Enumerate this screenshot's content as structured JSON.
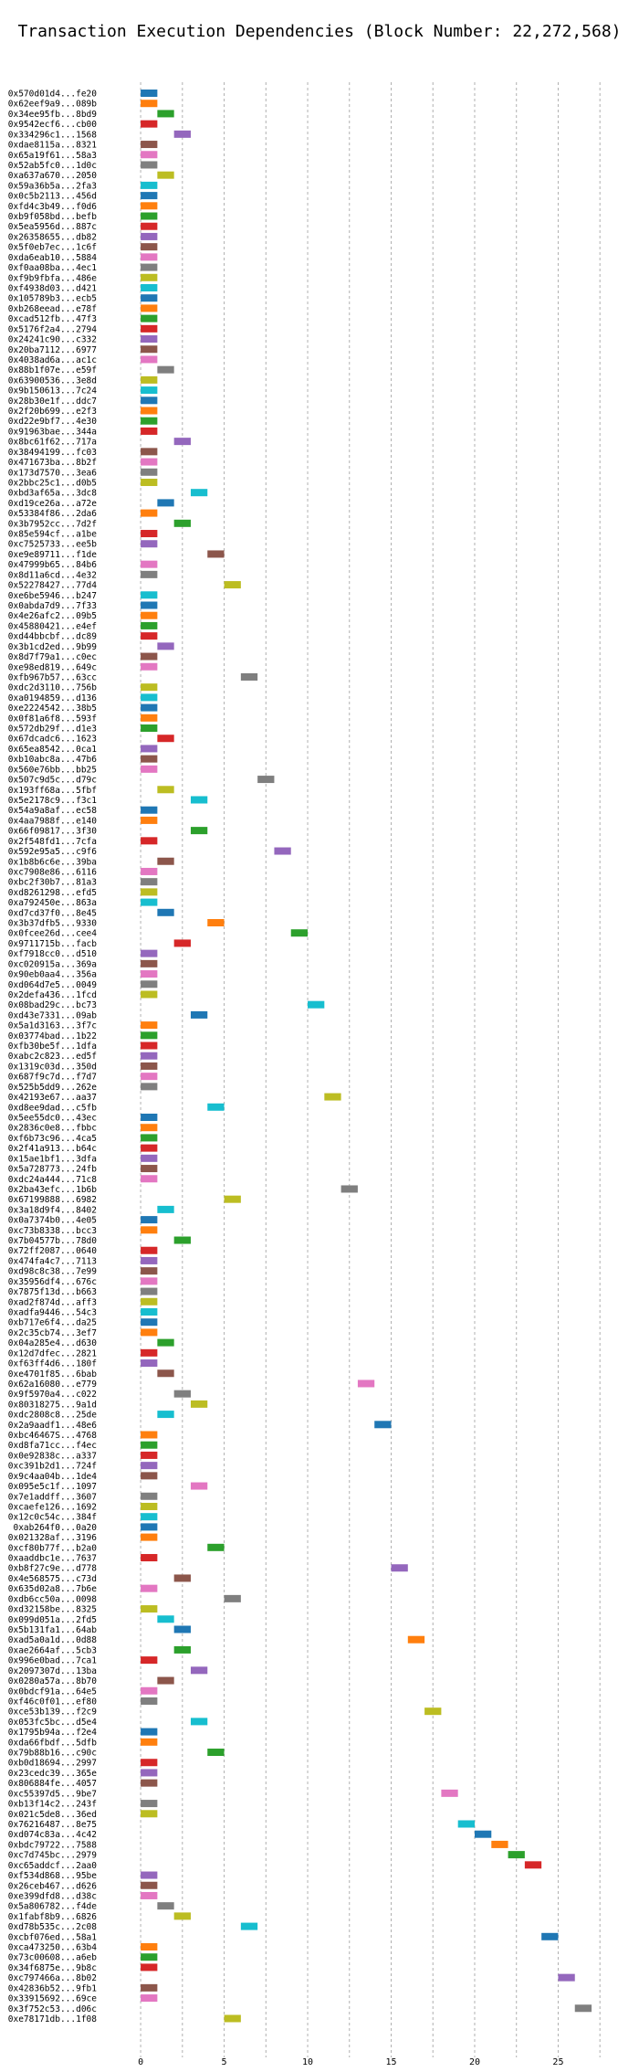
{
  "chart_data": {
    "type": "bar",
    "orientation": "horizontal",
    "title": "Transaction Execution Dependencies (Block Number: 22,272,568)",
    "xlabel": "",
    "ylabel": "",
    "xlim": [
      -2.3,
      28.2
    ],
    "xticks": [
      0,
      5,
      10,
      15,
      20,
      25
    ],
    "bar_width": 1,
    "grid": true,
    "transactions": [
      {
        "label": "0x570d01d4...fe20",
        "start": 0,
        "color": "#1f77b4"
      },
      {
        "label": "0x62eef9a9...089b",
        "start": 0,
        "color": "#ff7f0e"
      },
      {
        "label": "0x34ee95fb...8bd9",
        "start": 1,
        "color": "#2ca02c"
      },
      {
        "label": "0x9542ecf6...cb00",
        "start": 0,
        "color": "#d62728"
      },
      {
        "label": "0x334296c1...1568",
        "start": 2,
        "color": "#9467bd"
      },
      {
        "label": "0xdae8115a...8321",
        "start": 0,
        "color": "#8c564b"
      },
      {
        "label": "0x65a19f61...58a3",
        "start": 0,
        "color": "#e377c2"
      },
      {
        "label": "0x52ab5fc0...1d0c",
        "start": 0,
        "color": "#7f7f7f"
      },
      {
        "label": "0xa637a670...2050",
        "start": 1,
        "color": "#bcbd22"
      },
      {
        "label": "0x59a36b5a...2fa3",
        "start": 0,
        "color": "#17becf"
      },
      {
        "label": "0x0c5b2113...456d",
        "start": 0,
        "color": "#1f77b4"
      },
      {
        "label": "0xfd4c3b49...f0d6",
        "start": 0,
        "color": "#ff7f0e"
      },
      {
        "label": "0xb9f058bd...befb",
        "start": 0,
        "color": "#2ca02c"
      },
      {
        "label": "0x5ea5956d...887c",
        "start": 0,
        "color": "#d62728"
      },
      {
        "label": "0x26358655...db82",
        "start": 0,
        "color": "#9467bd"
      },
      {
        "label": "0x5f0eb7ec...1c6f",
        "start": 0,
        "color": "#8c564b"
      },
      {
        "label": "0xda6eab10...5884",
        "start": 0,
        "color": "#e377c2"
      },
      {
        "label": "0xf0aa08ba...4ec1",
        "start": 0,
        "color": "#7f7f7f"
      },
      {
        "label": "0xf9b9fbfa...486e",
        "start": 0,
        "color": "#bcbd22"
      },
      {
        "label": "0xf4938d03...d421",
        "start": 0,
        "color": "#17becf"
      },
      {
        "label": "0x105789b3...ecb5",
        "start": 0,
        "color": "#1f77b4"
      },
      {
        "label": "0xb268eead...e78f",
        "start": 0,
        "color": "#ff7f0e"
      },
      {
        "label": "0xcad512fb...47f3",
        "start": 0,
        "color": "#2ca02c"
      },
      {
        "label": "0x5176f2a4...2794",
        "start": 0,
        "color": "#d62728"
      },
      {
        "label": "0x24241c90...c332",
        "start": 0,
        "color": "#9467bd"
      },
      {
        "label": "0x20ba7112...6977",
        "start": 0,
        "color": "#8c564b"
      },
      {
        "label": "0x4038ad6a...ac1c",
        "start": 0,
        "color": "#e377c2"
      },
      {
        "label": "0x88b1f07e...e59f",
        "start": 1,
        "color": "#7f7f7f"
      },
      {
        "label": "0x63900536...3e8d",
        "start": 0,
        "color": "#bcbd22"
      },
      {
        "label": "0x9b150613...7c24",
        "start": 0,
        "color": "#17becf"
      },
      {
        "label": "0x28b30e1f...ddc7",
        "start": 0,
        "color": "#1f77b4"
      },
      {
        "label": "0x2f20b699...e2f3",
        "start": 0,
        "color": "#ff7f0e"
      },
      {
        "label": "0xd22e9bf7...4e30",
        "start": 0,
        "color": "#2ca02c"
      },
      {
        "label": "0x91963bae...344a",
        "start": 0,
        "color": "#d62728"
      },
      {
        "label": "0x8bc61f62...717a",
        "start": 2,
        "color": "#9467bd"
      },
      {
        "label": "0x38494199...fc03",
        "start": 0,
        "color": "#8c564b"
      },
      {
        "label": "0x471673ba...8b2f",
        "start": 0,
        "color": "#e377c2"
      },
      {
        "label": "0x173d7570...3ea6",
        "start": 0,
        "color": "#7f7f7f"
      },
      {
        "label": "0x2bbc25c1...d0b5",
        "start": 0,
        "color": "#bcbd22"
      },
      {
        "label": "0xbd3af65a...3dc8",
        "start": 3,
        "color": "#17becf"
      },
      {
        "label": "0xd19ce26a...a72e",
        "start": 1,
        "color": "#1f77b4"
      },
      {
        "label": "0x53384f86...2da6",
        "start": 0,
        "color": "#ff7f0e"
      },
      {
        "label": "0x3b7952cc...7d2f",
        "start": 2,
        "color": "#2ca02c"
      },
      {
        "label": "0x85e594cf...a1be",
        "start": 0,
        "color": "#d62728"
      },
      {
        "label": "0xc7525733...ee5b",
        "start": 0,
        "color": "#9467bd"
      },
      {
        "label": "0xe9e89711...f1de",
        "start": 4,
        "color": "#8c564b"
      },
      {
        "label": "0x47999b65...84b6",
        "start": 0,
        "color": "#e377c2"
      },
      {
        "label": "0x8d11a6cd...4e32",
        "start": 0,
        "color": "#7f7f7f"
      },
      {
        "label": "0x52278427...77d4",
        "start": 5,
        "color": "#bcbd22"
      },
      {
        "label": "0xe6be5946...b247",
        "start": 0,
        "color": "#17becf"
      },
      {
        "label": "0x0abda7d9...7f33",
        "start": 0,
        "color": "#1f77b4"
      },
      {
        "label": "0x4e26afc2...09b5",
        "start": 0,
        "color": "#ff7f0e"
      },
      {
        "label": "0x45880421...e4ef",
        "start": 0,
        "color": "#2ca02c"
      },
      {
        "label": "0xd44bbcbf...dc89",
        "start": 0,
        "color": "#d62728"
      },
      {
        "label": "0x3b1cd2ed...9b99",
        "start": 1,
        "color": "#9467bd"
      },
      {
        "label": "0x8d7f79a1...c0ec",
        "start": 0,
        "color": "#8c564b"
      },
      {
        "label": "0xe98ed819...649c",
        "start": 0,
        "color": "#e377c2"
      },
      {
        "label": "0xfb967b57...63cc",
        "start": 6,
        "color": "#7f7f7f"
      },
      {
        "label": "0xdc2d3110...756b",
        "start": 0,
        "color": "#bcbd22"
      },
      {
        "label": "0xa0194859...d136",
        "start": 0,
        "color": "#17becf"
      },
      {
        "label": "0xe2224542...38b5",
        "start": 0,
        "color": "#1f77b4"
      },
      {
        "label": "0x0f81a6f8...593f",
        "start": 0,
        "color": "#ff7f0e"
      },
      {
        "label": "0x572db29f...d1e3",
        "start": 0,
        "color": "#2ca02c"
      },
      {
        "label": "0x67dcadc6...1623",
        "start": 1,
        "color": "#d62728"
      },
      {
        "label": "0x65ea8542...0ca1",
        "start": 0,
        "color": "#9467bd"
      },
      {
        "label": "0xb10abc8a...47b6",
        "start": 0,
        "color": "#8c564b"
      },
      {
        "label": "0x560e76bb...bb25",
        "start": 0,
        "color": "#e377c2"
      },
      {
        "label": "0x507c9d5c...d79c",
        "start": 7,
        "color": "#7f7f7f"
      },
      {
        "label": "0x193ff68a...5fbf",
        "start": 1,
        "color": "#bcbd22"
      },
      {
        "label": "0x5e2178c9...f3c1",
        "start": 3,
        "color": "#17becf"
      },
      {
        "label": "0x54a9a8af...ec58",
        "start": 0,
        "color": "#1f77b4"
      },
      {
        "label": "0x4aa7988f...e140",
        "start": 0,
        "color": "#ff7f0e"
      },
      {
        "label": "0x66f09817...3f30",
        "start": 3,
        "color": "#2ca02c"
      },
      {
        "label": "0x2f548fd1...7cfa",
        "start": 0,
        "color": "#d62728"
      },
      {
        "label": "0x592e95a5...c9f6",
        "start": 8,
        "color": "#9467bd"
      },
      {
        "label": "0x1b8b6c6e...39ba",
        "start": 1,
        "color": "#8c564b"
      },
      {
        "label": "0xc7908e86...6116",
        "start": 0,
        "color": "#e377c2"
      },
      {
        "label": "0xbc2f30b7...81a3",
        "start": 0,
        "color": "#7f7f7f"
      },
      {
        "label": "0xd8261298...efd5",
        "start": 0,
        "color": "#bcbd22"
      },
      {
        "label": "0xa792450e...863a",
        "start": 0,
        "color": "#17becf"
      },
      {
        "label": "0xd7cd37f0...8e45",
        "start": 1,
        "color": "#1f77b4"
      },
      {
        "label": "0x3b37dfb5...9330",
        "start": 4,
        "color": "#ff7f0e"
      },
      {
        "label": "0x0fcee26d...cee4",
        "start": 9,
        "color": "#2ca02c"
      },
      {
        "label": "0x9711715b...facb",
        "start": 2,
        "color": "#d62728"
      },
      {
        "label": "0xf7918cc0...d510",
        "start": 0,
        "color": "#9467bd"
      },
      {
        "label": "0xc020915a...369a",
        "start": 0,
        "color": "#8c564b"
      },
      {
        "label": "0x90eb0aa4...356a",
        "start": 0,
        "color": "#e377c2"
      },
      {
        "label": "0xd064d7e5...0049",
        "start": 0,
        "color": "#7f7f7f"
      },
      {
        "label": "0x2defa436...1fcd",
        "start": 0,
        "color": "#bcbd22"
      },
      {
        "label": "0x08bad29c...bc73",
        "start": 10,
        "color": "#17becf"
      },
      {
        "label": "0xd43e7331...09ab",
        "start": 3,
        "color": "#1f77b4"
      },
      {
        "label": "0x5a1d3163...3f7c",
        "start": 0,
        "color": "#ff7f0e"
      },
      {
        "label": "0x03774bad...1b22",
        "start": 0,
        "color": "#2ca02c"
      },
      {
        "label": "0xfb30be5f...1dfa",
        "start": 0,
        "color": "#d62728"
      },
      {
        "label": "0xabc2c823...ed5f",
        "start": 0,
        "color": "#9467bd"
      },
      {
        "label": "0x1319c03d...350d",
        "start": 0,
        "color": "#8c564b"
      },
      {
        "label": "0x687f9c7d...f7d7",
        "start": 0,
        "color": "#e377c2"
      },
      {
        "label": "0x525b5dd9...262e",
        "start": 0,
        "color": "#7f7f7f"
      },
      {
        "label": "0x42193e67...aa37",
        "start": 11,
        "color": "#bcbd22"
      },
      {
        "label": "0xd8ee9dad...c5fb",
        "start": 4,
        "color": "#17becf"
      },
      {
        "label": "0x5ee55dc0...43ec",
        "start": 0,
        "color": "#1f77b4"
      },
      {
        "label": "0x2836c0e8...fbbc",
        "start": 0,
        "color": "#ff7f0e"
      },
      {
        "label": "0xf6b73c96...4ca5",
        "start": 0,
        "color": "#2ca02c"
      },
      {
        "label": "0x2f41a913...b64c",
        "start": 0,
        "color": "#d62728"
      },
      {
        "label": "0x15ae1bf1...3dfa",
        "start": 0,
        "color": "#9467bd"
      },
      {
        "label": "0x5a728773...24fb",
        "start": 0,
        "color": "#8c564b"
      },
      {
        "label": "0xdc24a444...71c8",
        "start": 0,
        "color": "#e377c2"
      },
      {
        "label": "0x2ba43efc...1b6b",
        "start": 12,
        "color": "#7f7f7f"
      },
      {
        "label": "0x67199888...6982",
        "start": 5,
        "color": "#bcbd22"
      },
      {
        "label": "0x3a18d9f4...8402",
        "start": 1,
        "color": "#17becf"
      },
      {
        "label": "0x0a7374b0...4e05",
        "start": 0,
        "color": "#1f77b4"
      },
      {
        "label": "0xc73b8338...bcc3",
        "start": 0,
        "color": "#ff7f0e"
      },
      {
        "label": "0x7b04577b...78d0",
        "start": 2,
        "color": "#2ca02c"
      },
      {
        "label": "0x72ff2087...0640",
        "start": 0,
        "color": "#d62728"
      },
      {
        "label": "0x474fa4c7...7113",
        "start": 0,
        "color": "#9467bd"
      },
      {
        "label": "0xd98c8c38...7e99",
        "start": 0,
        "color": "#8c564b"
      },
      {
        "label": "0x35956df4...676c",
        "start": 0,
        "color": "#e377c2"
      },
      {
        "label": "0x7875f13d...b663",
        "start": 0,
        "color": "#7f7f7f"
      },
      {
        "label": "0xad2f874d...aff3",
        "start": 0,
        "color": "#bcbd22"
      },
      {
        "label": "0xadfa9446...54c3",
        "start": 0,
        "color": "#17becf"
      },
      {
        "label": "0xb717e6f4...da25",
        "start": 0,
        "color": "#1f77b4"
      },
      {
        "label": "0x2c35cb74...3ef7",
        "start": 0,
        "color": "#ff7f0e"
      },
      {
        "label": "0x04a285e4...d630",
        "start": 1,
        "color": "#2ca02c"
      },
      {
        "label": "0x12d7dfec...2821",
        "start": 0,
        "color": "#d62728"
      },
      {
        "label": "0xf63ff4d6...180f",
        "start": 0,
        "color": "#9467bd"
      },
      {
        "label": "0xe4701f85...6bab",
        "start": 1,
        "color": "#8c564b"
      },
      {
        "label": "0x62a16080...e779",
        "start": 13,
        "color": "#e377c2"
      },
      {
        "label": "0x9f5970a4...c022",
        "start": 2,
        "color": "#7f7f7f"
      },
      {
        "label": "0x80318275...9a1d",
        "start": 3,
        "color": "#bcbd22"
      },
      {
        "label": "0xdc2808c8...25de",
        "start": 1,
        "color": "#17becf"
      },
      {
        "label": "0x2a9aadf1...48e6",
        "start": 14,
        "color": "#1f77b4"
      },
      {
        "label": "0xbc46467S...4768",
        "start": 0,
        "color": "#ff7f0e"
      },
      {
        "label": "0xd8fa71cc...f4ec",
        "start": 0,
        "color": "#2ca02c"
      },
      {
        "label": "0x0e92838c...a337",
        "start": 0,
        "color": "#d62728"
      },
      {
        "label": "0xc391b2d1...724f",
        "start": 0,
        "color": "#9467bd"
      },
      {
        "label": "0x9c4aa04b...1de4",
        "start": 0,
        "color": "#8c564b"
      },
      {
        "label": "0x095e5c1f...1097",
        "start": 3,
        "color": "#e377c2"
      },
      {
        "label": "0x7e1addff...3607",
        "start": 0,
        "color": "#7f7f7f"
      },
      {
        "label": "0xcaefe126...1692",
        "start": 0,
        "color": "#bcbd22"
      },
      {
        "label": "0x12c0c54c...384f",
        "start": 0,
        "color": "#17becf"
      },
      {
        "label": "0xab264f0...0a20",
        "start": 0,
        "color": "#1f77b4"
      },
      {
        "label": "0x021328af...3196",
        "start": 0,
        "color": "#ff7f0e"
      },
      {
        "label": "0xcf80b77f...b2a0",
        "start": 4,
        "color": "#2ca02c"
      },
      {
        "label": "0xaaddbc1e...7637",
        "start": 0,
        "color": "#d62728"
      },
      {
        "label": "0xb8f27c9e...d778",
        "start": 15,
        "color": "#9467bd"
      },
      {
        "label": "0x4e568575...c73d",
        "start": 2,
        "color": "#8c564b"
      },
      {
        "label": "0x635d02a8...7b6e",
        "start": 0,
        "color": "#e377c2"
      },
      {
        "label": "0xdb6cc50a...0098",
        "start": 5,
        "color": "#7f7f7f"
      },
      {
        "label": "0xd32158be...8325",
        "start": 0,
        "color": "#bcbd22"
      },
      {
        "label": "0x099d051a...2fd5",
        "start": 1,
        "color": "#17becf"
      },
      {
        "label": "0x5b131fa1...64ab",
        "start": 2,
        "color": "#1f77b4"
      },
      {
        "label": "0xad5a0a1d...0d88",
        "start": 16,
        "color": "#ff7f0e"
      },
      {
        "label": "0xae2664af...5cb3",
        "start": 2,
        "color": "#2ca02c"
      },
      {
        "label": "0x996e0bad...7ca1",
        "start": 0,
        "color": "#d62728"
      },
      {
        "label": "0x2097307d...13ba",
        "start": 3,
        "color": "#9467bd"
      },
      {
        "label": "0x0280a57a...8b70",
        "start": 1,
        "color": "#8c564b"
      },
      {
        "label": "0x0bdcf91a...64e5",
        "start": 0,
        "color": "#e377c2"
      },
      {
        "label": "0xf46c0f01...ef80",
        "start": 0,
        "color": "#7f7f7f"
      },
      {
        "label": "0xce53b139...f2c9",
        "start": 17,
        "color": "#bcbd22"
      },
      {
        "label": "0x053fc5bc...d5e4",
        "start": 3,
        "color": "#17becf"
      },
      {
        "label": "0x1795b94a...f2e4",
        "start": 0,
        "color": "#1f77b4"
      },
      {
        "label": "0xda66fbdf...5dfb",
        "start": 0,
        "color": "#ff7f0e"
      },
      {
        "label": "0x79b88b16...c90c",
        "start": 4,
        "color": "#2ca02c"
      },
      {
        "label": "0xb0d18694...2997",
        "start": 0,
        "color": "#d62728"
      },
      {
        "label": "0x23cedc39...365e",
        "start": 0,
        "color": "#9467bd"
      },
      {
        "label": "0x806884fe...4057",
        "start": 0,
        "color": "#8c564b"
      },
      {
        "label": "0xc55397d5...9be7",
        "start": 18,
        "color": "#e377c2"
      },
      {
        "label": "0xb13f14c2...243f",
        "start": 0,
        "color": "#7f7f7f"
      },
      {
        "label": "0x021c5de8...36ed",
        "start": 0,
        "color": "#bcbd22"
      },
      {
        "label": "0x76216487...8e75",
        "start": 19,
        "color": "#17becf"
      },
      {
        "label": "0xd074c83a...4c42",
        "start": 20,
        "color": "#1f77b4"
      },
      {
        "label": "0xbdc79722...7588",
        "start": 21,
        "color": "#ff7f0e"
      },
      {
        "label": "0xc7d745bc...2979",
        "start": 22,
        "color": "#2ca02c"
      },
      {
        "label": "0xc65addcf...2aa0",
        "start": 23,
        "color": "#d62728"
      },
      {
        "label": "0xf534d868...95be",
        "start": 0,
        "color": "#9467bd"
      },
      {
        "label": "0x26ceb467...d626",
        "start": 0,
        "color": "#8c564b"
      },
      {
        "label": "0xe399dfd8...d38c",
        "start": 0,
        "color": "#e377c2"
      },
      {
        "label": "0x5a806782...f4de",
        "start": 1,
        "color": "#7f7f7f"
      },
      {
        "label": "0x1fabf8b9...6826",
        "start": 2,
        "color": "#bcbd22"
      },
      {
        "label": "0xd78b535c...2c08",
        "start": 6,
        "color": "#17becf"
      },
      {
        "label": "0xcbf076ed...58a1",
        "start": 24,
        "color": "#1f77b4"
      },
      {
        "label": "0xca473250...63b4",
        "start": 0,
        "color": "#ff7f0e"
      },
      {
        "label": "0x73c00608...a6eb",
        "start": 0,
        "color": "#2ca02c"
      },
      {
        "label": "0x34f6875e...9b8c",
        "start": 0,
        "color": "#d62728"
      },
      {
        "label": "0xc797466a...8b02",
        "start": 25,
        "color": "#9467bd"
      },
      {
        "label": "0x42836b52...9fb1",
        "start": 0,
        "color": "#8c564b"
      },
      {
        "label": "0x33915692...69ce",
        "start": 0,
        "color": "#e377c2"
      },
      {
        "label": "0x3f752c53...d06c",
        "start": 26,
        "color": "#7f7f7f"
      },
      {
        "label": "0xe78171db...1f08",
        "start": 5,
        "color": "#bcbd22"
      }
    ]
  }
}
